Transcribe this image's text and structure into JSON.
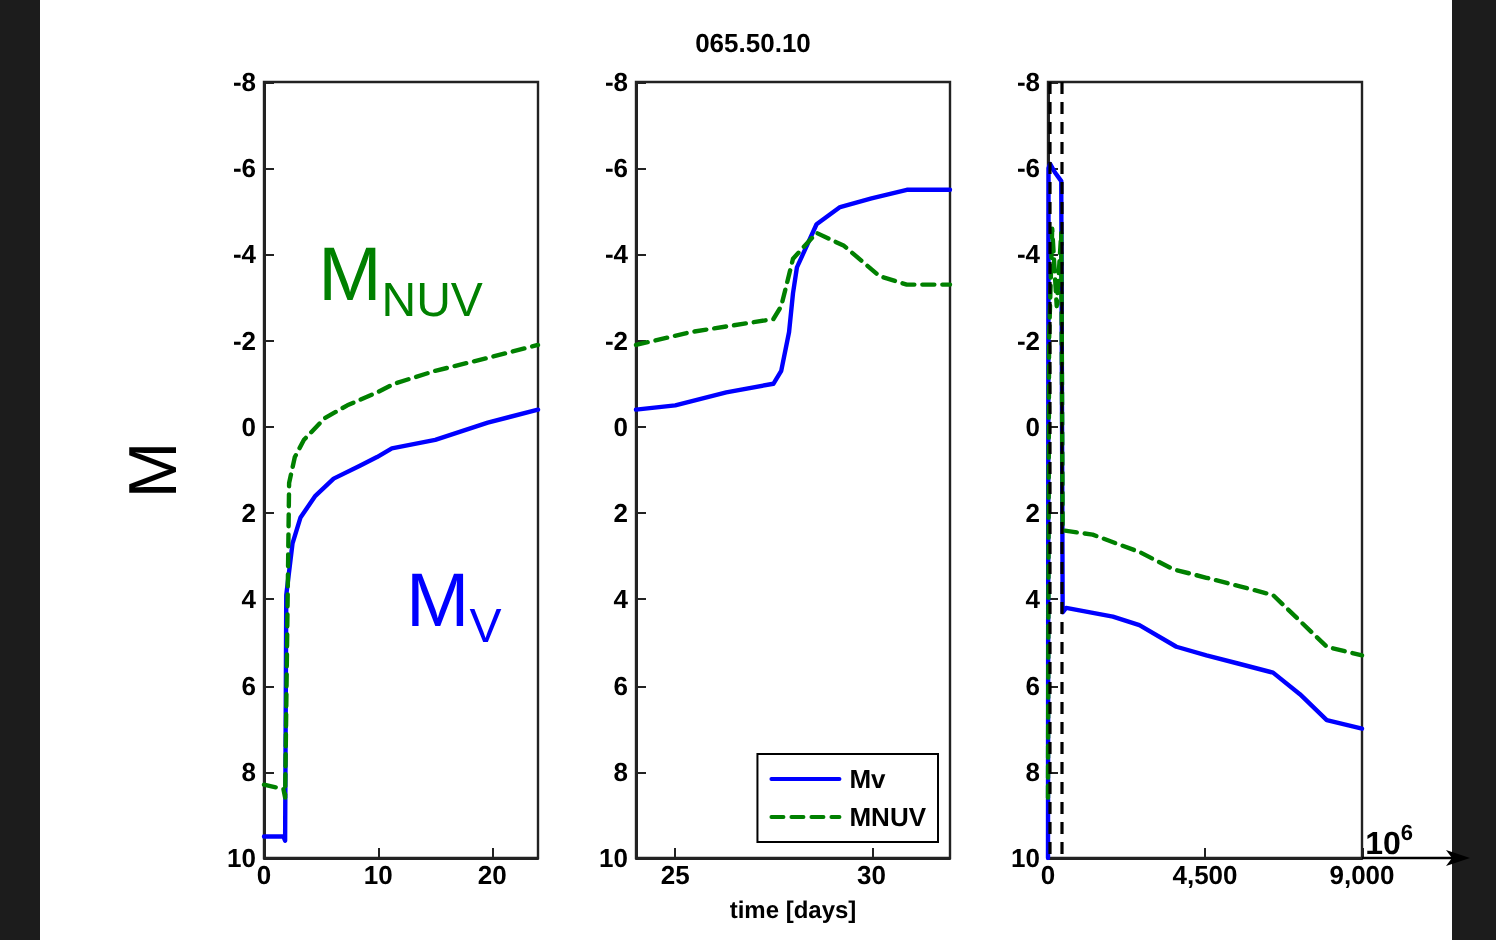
{
  "chart_data": [
    {
      "type": "line",
      "ylabel": "M",
      "xlim": [
        0,
        24
      ],
      "xticks": [
        0,
        10,
        20
      ],
      "ylim": [
        10,
        -8
      ],
      "yticks": [
        -8,
        -6,
        -4,
        -2,
        0,
        2,
        4,
        6,
        8,
        10
      ],
      "grid": false,
      "legend": false,
      "marker": "none",
      "annotations": [
        "M$_{V}$",
        "M$_{NUV}$"
      ],
      "series": [
        {
          "color": "#0000ff",
          "line_style": "solid",
          "x": [
            0,
            1.7,
            1.85,
            1.95,
            2.5,
            3.2,
            4.5,
            6.1,
            8.4,
            9.9,
            11.2,
            15,
            19.6,
            24
          ],
          "values": [
            9.5,
            9.5,
            9.6,
            3.9,
            2.7,
            2.1,
            1.6,
            1.2,
            0.9,
            0.7,
            0.5,
            0.3,
            -0.1,
            -0.4
          ]
        },
        {
          "color": "#008000",
          "line_style": "dashed",
          "x": [
            0,
            1.7,
            1.85,
            2.2,
            2.7,
            3.5,
            5.3,
            7.3,
            9.9,
            11.4,
            15,
            19.6,
            24
          ],
          "values": [
            8.3,
            8.4,
            8.6,
            1.3,
            0.7,
            0.3,
            -0.2,
            -0.5,
            -0.8,
            -1.0,
            -1.3,
            -1.6,
            -1.9
          ]
        }
      ]
    },
    {
      "type": "line",
      "title": "065.50.10",
      "xlabel": "time [days]",
      "xlim": [
        24,
        32
      ],
      "xticks": [
        25,
        30
      ],
      "ylim": [
        10,
        -8
      ],
      "yticks": [
        -8,
        -6,
        -4,
        -2,
        0,
        2,
        4,
        6,
        8,
        10
      ],
      "grid": false,
      "legend": "bottom right",
      "marker": "none",
      "series": [
        {
          "name": "Mv",
          "color": "#0000ff",
          "line_style": "solid",
          "x": [
            24,
            25,
            26.3,
            27.5,
            27.7,
            27.9,
            28,
            28.1,
            28.6,
            29.2,
            30,
            30.9,
            32
          ],
          "values": [
            -0.4,
            -0.5,
            -0.8,
            -1.0,
            -1.3,
            -2.2,
            -3.1,
            -3.7,
            -4.7,
            -5.1,
            -5.3,
            -5.5,
            -5.5
          ]
        },
        {
          "name": "MNUV",
          "color": "#008000",
          "line_style": "dashed",
          "x": [
            24,
            25.4,
            27.5,
            27.7,
            28,
            28.6,
            29.3,
            30.2,
            30.9,
            32
          ],
          "values": [
            -1.9,
            -2.2,
            -2.5,
            -2.8,
            -3.9,
            -4.5,
            -4.2,
            -3.5,
            -3.3,
            -3.3
          ]
        }
      ]
    },
    {
      "type": "line",
      "xlim": [
        0,
        9000
      ],
      "xticks": [
        0,
        {
          "value": 4500,
          "label": "4,500"
        },
        {
          "value": 9000,
          "label": "9,000"
        }
      ],
      "ylim": [
        10,
        -8
      ],
      "yticks": [
        -8,
        -6,
        -4,
        -2,
        0,
        2,
        4,
        6,
        8,
        10
      ],
      "grid": false,
      "legend": false,
      "marker": "none",
      "annotations": [
        "10$^{6}$"
      ],
      "ref_lines": [
        {
          "axis": "x",
          "value": 60,
          "color": "#000000",
          "line_style": "dashed"
        },
        {
          "axis": "x",
          "value": 380,
          "color": "#000000",
          "line_style": "dashed"
        }
      ],
      "series": [
        {
          "color": "#0000ff",
          "line_style": "solid",
          "x": [
            0,
            15,
            60,
            200,
            380,
            420,
            520,
            1860,
            2620,
            3680,
            4540,
            5500,
            6450,
            7220,
            7990,
            9000
          ],
          "values": [
            10,
            -6.0,
            -6.1,
            -5.9,
            -5.7,
            4.3,
            4.2,
            4.4,
            4.6,
            5.1,
            5.3,
            5.5,
            5.7,
            6.2,
            6.8,
            7.0
          ]
        },
        {
          "color": "#008000",
          "line_style": "dashed",
          "x": [
            0,
            30,
            120,
            250,
            380,
            420,
            1280,
            2620,
            3580,
            4540,
            5500,
            6450,
            7220,
            7990,
            9000
          ],
          "values": [
            8.6,
            -2.0,
            -4.6,
            -2.8,
            -4.5,
            2.4,
            2.5,
            2.9,
            3.3,
            3.5,
            3.7,
            3.9,
            4.5,
            5.1,
            5.3
          ]
        }
      ]
    }
  ]
}
